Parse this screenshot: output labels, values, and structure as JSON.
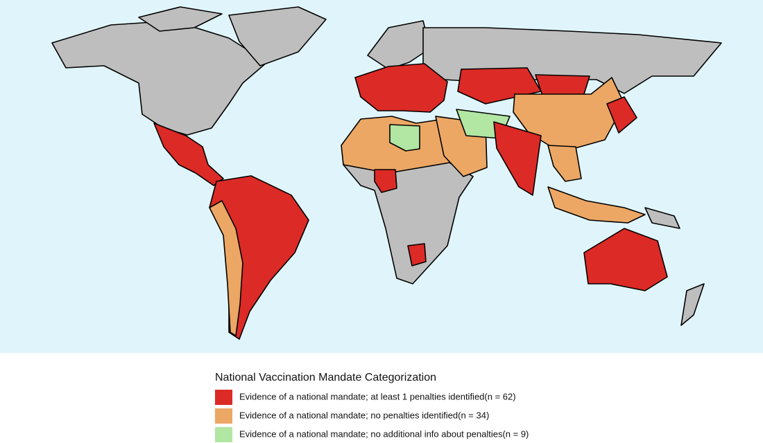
{
  "legend": {
    "title": "National Vaccination Mandate Categorization",
    "items": [
      {
        "label": "Evidence of a national mandate; at least 1 penalties identified(n = 62)",
        "color": "#dc2a26"
      },
      {
        "label": "Evidence of a national mandate; no penalties identified(n = 34)",
        "color": "#eca765"
      },
      {
        "label": "Evidence of a national mandate; no additional info about penalties(n = 9)",
        "color": "#b2e6a3"
      }
    ]
  }
}
